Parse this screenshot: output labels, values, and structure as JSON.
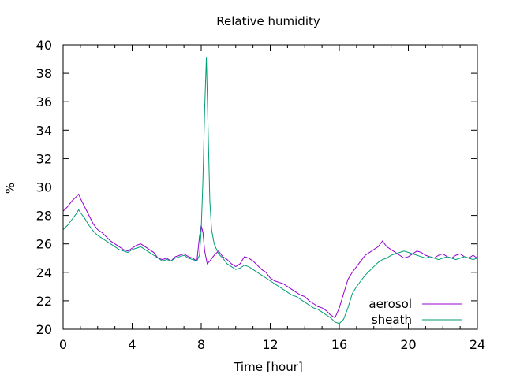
{
  "chart_data": {
    "type": "line",
    "title": "Relative humidity",
    "xlabel": "Time [hour]",
    "ylabel": "%",
    "xlim": [
      0,
      24
    ],
    "ylim": [
      20,
      40
    ],
    "xticks": [
      0,
      4,
      8,
      12,
      16,
      20,
      24
    ],
    "yticks": [
      20,
      22,
      24,
      26,
      28,
      30,
      32,
      34,
      36,
      38,
      40
    ],
    "grid": false,
    "legend_position": "bottom-right",
    "series": [
      {
        "name": "aerosol",
        "color": "#9400d3",
        "x": [
          0,
          0.25,
          0.5,
          0.75,
          0.9,
          1.0,
          1.25,
          1.5,
          1.75,
          2.0,
          2.25,
          2.5,
          2.75,
          3.0,
          3.25,
          3.5,
          3.75,
          4.0,
          4.25,
          4.5,
          4.75,
          5.0,
          5.25,
          5.5,
          5.75,
          6.0,
          6.25,
          6.5,
          6.75,
          7.0,
          7.25,
          7.5,
          7.75,
          7.9,
          8.0,
          8.1,
          8.2,
          8.35,
          8.5,
          8.75,
          9.0,
          9.25,
          9.5,
          9.75,
          10.0,
          10.25,
          10.5,
          10.75,
          11.0,
          11.25,
          11.5,
          11.75,
          12.0,
          12.25,
          12.5,
          12.75,
          13.0,
          13.25,
          13.5,
          13.75,
          14.0,
          14.25,
          14.5,
          14.75,
          15.0,
          15.25,
          15.5,
          15.75,
          16.0,
          16.25,
          16.5,
          16.75,
          17.0,
          17.25,
          17.5,
          17.75,
          18.0,
          18.25,
          18.5,
          18.75,
          19.0,
          19.25,
          19.5,
          19.75,
          20.0,
          20.25,
          20.5,
          20.75,
          21.0,
          21.25,
          21.5,
          21.75,
          22.0,
          22.25,
          22.5,
          22.75,
          23.0,
          23.25,
          23.5,
          23.75,
          24.0
        ],
        "values": [
          28.3,
          28.6,
          29.0,
          29.3,
          29.5,
          29.2,
          28.6,
          28.0,
          27.4,
          27.0,
          26.8,
          26.5,
          26.2,
          26.0,
          25.8,
          25.6,
          25.5,
          25.7,
          25.9,
          26.0,
          25.8,
          25.6,
          25.4,
          25.0,
          24.9,
          25.0,
          24.8,
          25.1,
          25.2,
          25.3,
          25.1,
          25.0,
          24.8,
          26.5,
          27.3,
          26.8,
          25.5,
          24.6,
          24.8,
          25.2,
          25.5,
          25.1,
          24.9,
          24.6,
          24.4,
          24.6,
          25.1,
          25.0,
          24.8,
          24.5,
          24.2,
          24.0,
          23.6,
          23.4,
          23.3,
          23.2,
          23.0,
          22.8,
          22.6,
          22.4,
          22.3,
          22.0,
          21.8,
          21.6,
          21.5,
          21.3,
          21.0,
          20.8,
          21.5,
          22.5,
          23.5,
          24.0,
          24.4,
          24.8,
          25.2,
          25.4,
          25.6,
          25.8,
          26.2,
          25.8,
          25.6,
          25.4,
          25.2,
          25.0,
          25.1,
          25.3,
          25.5,
          25.4,
          25.2,
          25.1,
          25.0,
          25.2,
          25.3,
          25.1,
          25.0,
          25.2,
          25.3,
          25.1,
          25.0,
          25.2,
          25.0
        ]
      },
      {
        "name": "sheath",
        "color": "#009e73",
        "x": [
          0,
          0.25,
          0.5,
          0.75,
          0.9,
          1.0,
          1.25,
          1.5,
          1.75,
          2.0,
          2.25,
          2.5,
          2.75,
          3.0,
          3.25,
          3.5,
          3.75,
          4.0,
          4.25,
          4.5,
          4.75,
          5.0,
          5.25,
          5.5,
          5.75,
          6.0,
          6.25,
          6.5,
          6.75,
          7.0,
          7.25,
          7.5,
          7.75,
          7.9,
          8.0,
          8.1,
          8.2,
          8.3,
          8.4,
          8.5,
          8.6,
          8.75,
          9.0,
          9.25,
          9.5,
          9.75,
          10.0,
          10.25,
          10.5,
          10.75,
          11.0,
          11.25,
          11.5,
          11.75,
          12.0,
          12.25,
          12.5,
          12.75,
          13.0,
          13.25,
          13.5,
          13.75,
          14.0,
          14.25,
          14.5,
          14.75,
          15.0,
          15.25,
          15.5,
          15.75,
          16.0,
          16.25,
          16.5,
          16.75,
          17.0,
          17.25,
          17.5,
          17.75,
          18.0,
          18.25,
          18.5,
          18.75,
          19.0,
          19.25,
          19.5,
          19.75,
          20.0,
          20.25,
          20.5,
          20.75,
          21.0,
          21.25,
          21.5,
          21.75,
          22.0,
          22.25,
          22.5,
          22.75,
          23.0,
          23.25,
          23.5,
          23.75,
          24.0
        ],
        "values": [
          27.0,
          27.3,
          27.7,
          28.1,
          28.4,
          28.2,
          27.8,
          27.3,
          26.9,
          26.6,
          26.4,
          26.2,
          26.0,
          25.8,
          25.6,
          25.5,
          25.4,
          25.6,
          25.7,
          25.8,
          25.6,
          25.4,
          25.2,
          25.0,
          24.8,
          24.9,
          24.8,
          25.0,
          25.1,
          25.2,
          25.0,
          24.9,
          24.8,
          25.2,
          27.0,
          30.5,
          35.5,
          39.1,
          34.0,
          29.0,
          27.0,
          26.0,
          25.3,
          25.0,
          24.6,
          24.4,
          24.2,
          24.3,
          24.5,
          24.4,
          24.2,
          24.0,
          23.8,
          23.6,
          23.4,
          23.2,
          23.0,
          22.8,
          22.6,
          22.4,
          22.3,
          22.1,
          21.9,
          21.7,
          21.5,
          21.4,
          21.2,
          21.0,
          20.8,
          20.5,
          20.4,
          20.7,
          21.5,
          22.5,
          23.0,
          23.4,
          23.8,
          24.1,
          24.4,
          24.7,
          24.9,
          25.0,
          25.2,
          25.3,
          25.4,
          25.5,
          25.4,
          25.3,
          25.2,
          25.1,
          25.0,
          25.1,
          25.0,
          24.9,
          25.0,
          25.1,
          25.0,
          24.9,
          25.0,
          25.1,
          25.0,
          24.9,
          25.0
        ]
      }
    ]
  }
}
